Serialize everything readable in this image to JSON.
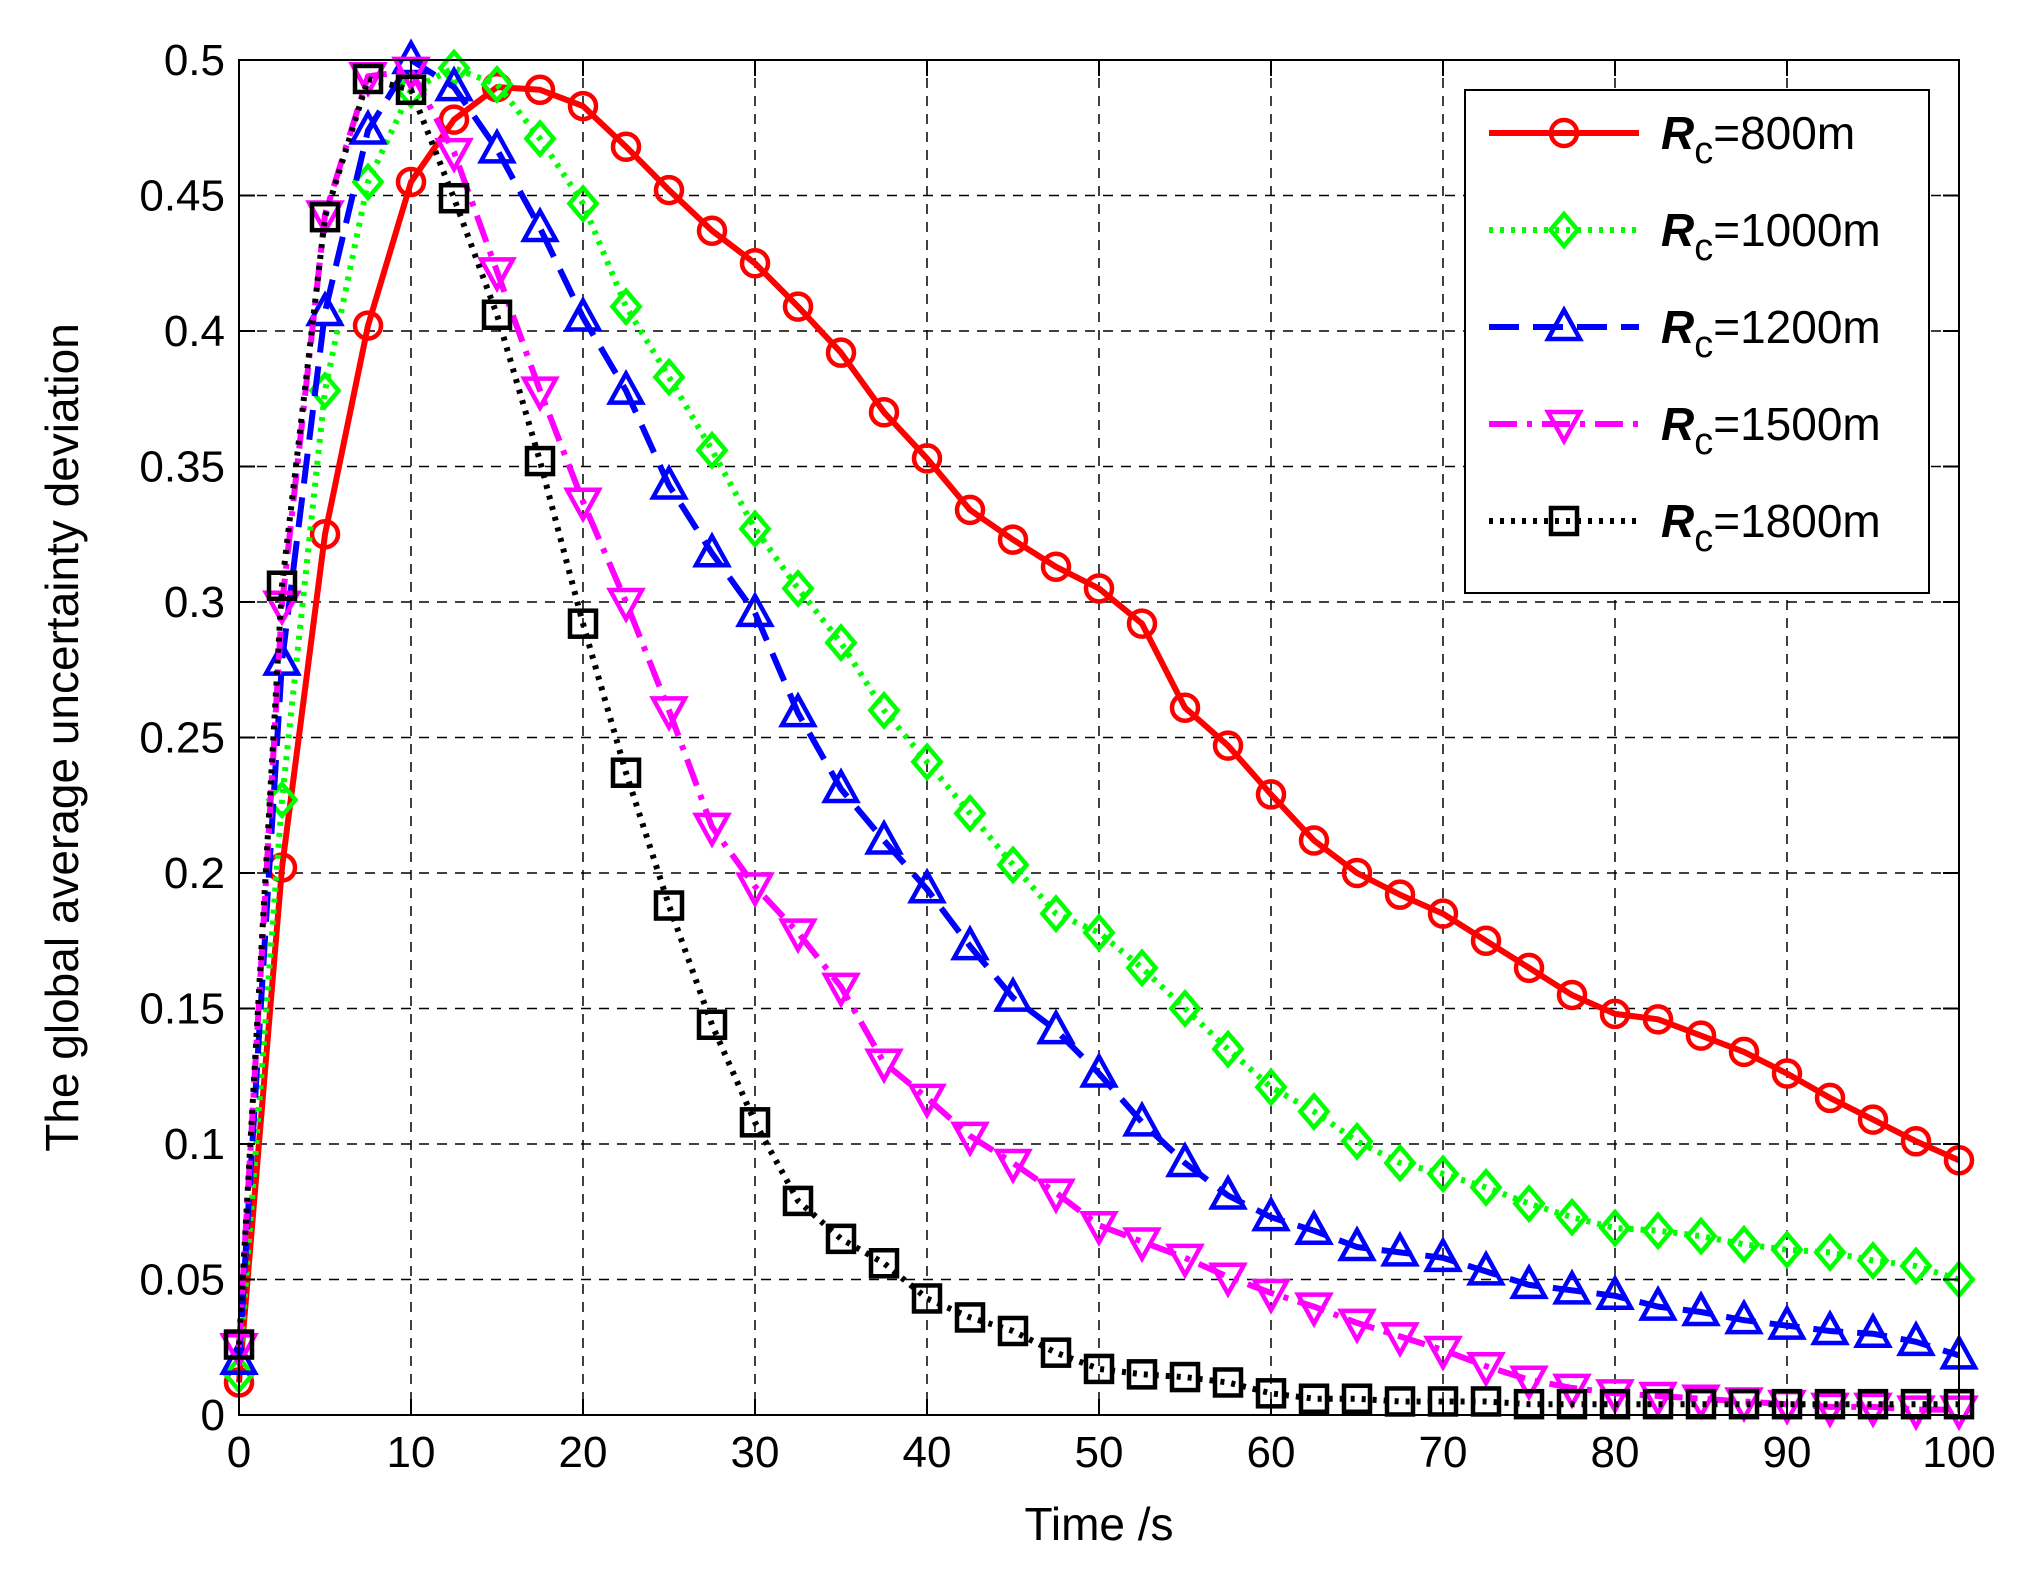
{
  "chart_data": {
    "type": "line",
    "title": "",
    "xlabel": "Time /s",
    "ylabel": "The global average uncertainty deviation",
    "xlim": [
      0,
      100
    ],
    "ylim": [
      0,
      0.5
    ],
    "xticks": [
      0,
      10,
      20,
      30,
      40,
      50,
      60,
      70,
      80,
      90,
      100
    ],
    "xtick_labels": [
      "0",
      "10",
      "20",
      "30",
      "40",
      "50",
      "60",
      "70",
      "80",
      "90",
      "100"
    ],
    "yticks": [
      0,
      0.05,
      0.1,
      0.15,
      0.2,
      0.25,
      0.3,
      0.35,
      0.4,
      0.45,
      0.5
    ],
    "ytick_labels": [
      "0",
      "0.05",
      "0.1",
      "0.15",
      "0.2",
      "0.25",
      "0.3",
      "0.35",
      "0.4",
      "0.45",
      "0.5"
    ],
    "grid": true,
    "legend_position": "top-right",
    "x": [
      0,
      2.5,
      5,
      7.5,
      10,
      12.5,
      15,
      17.5,
      20,
      22.5,
      25,
      27.5,
      30,
      32.5,
      35,
      37.5,
      40,
      42.5,
      45,
      47.5,
      50,
      52.5,
      55,
      57.5,
      60,
      62.5,
      65,
      67.5,
      70,
      72.5,
      75,
      77.5,
      80,
      82.5,
      85,
      87.5,
      90,
      92.5,
      95,
      97.5,
      100
    ],
    "series": [
      {
        "name": "Rc=800m",
        "legend_symbol": "R",
        "legend_subscript": "c",
        "legend_suffix": "=800m",
        "color": "#ff0000",
        "dash": "solid",
        "marker": "circle",
        "values": [
          0.012,
          0.202,
          0.325,
          0.402,
          0.455,
          0.478,
          0.49,
          0.489,
          0.483,
          0.468,
          0.452,
          0.437,
          0.425,
          0.409,
          0.392,
          0.37,
          0.353,
          0.334,
          0.323,
          0.313,
          0.305,
          0.292,
          0.261,
          0.247,
          0.229,
          0.212,
          0.2,
          0.192,
          0.185,
          0.175,
          0.165,
          0.155,
          0.148,
          0.146,
          0.14,
          0.134,
          0.126,
          0.117,
          0.109,
          0.101,
          0.094
        ]
      },
      {
        "name": "Rc=1000m",
        "legend_symbol": "R",
        "legend_subscript": "c",
        "legend_suffix": "=1000m",
        "color": "#00ff00",
        "dash": "dotted",
        "marker": "diamond",
        "values": [
          0.015,
          0.227,
          0.378,
          0.455,
          0.489,
          0.497,
          0.491,
          0.471,
          0.447,
          0.409,
          0.383,
          0.356,
          0.327,
          0.305,
          0.285,
          0.26,
          0.241,
          0.222,
          0.203,
          0.185,
          0.178,
          0.165,
          0.15,
          0.135,
          0.121,
          0.112,
          0.101,
          0.093,
          0.089,
          0.084,
          0.078,
          0.073,
          0.069,
          0.068,
          0.066,
          0.063,
          0.061,
          0.06,
          0.057,
          0.055,
          0.05
        ]
      },
      {
        "name": "Rc=1200m",
        "legend_symbol": "R",
        "legend_subscript": "c",
        "legend_suffix": "=1200m",
        "color": "#0000ff",
        "dash": "dashed",
        "marker": "triangle-up",
        "values": [
          0.02,
          0.278,
          0.407,
          0.474,
          0.5,
          0.49,
          0.467,
          0.438,
          0.405,
          0.378,
          0.343,
          0.318,
          0.296,
          0.259,
          0.231,
          0.212,
          0.194,
          0.173,
          0.154,
          0.142,
          0.126,
          0.108,
          0.093,
          0.081,
          0.073,
          0.068,
          0.062,
          0.06,
          0.058,
          0.053,
          0.048,
          0.046,
          0.044,
          0.04,
          0.038,
          0.035,
          0.033,
          0.031,
          0.03,
          0.027,
          0.022
        ]
      },
      {
        "name": "Rc=1500m",
        "legend_symbol": "R",
        "legend_subscript": "c",
        "legend_suffix": "=1500m",
        "color": "#ff00ff",
        "dash": "dashdot",
        "marker": "triangle-down",
        "values": [
          0.025,
          0.299,
          0.443,
          0.494,
          0.496,
          0.466,
          0.422,
          0.378,
          0.337,
          0.3,
          0.26,
          0.217,
          0.195,
          0.178,
          0.158,
          0.13,
          0.117,
          0.103,
          0.093,
          0.082,
          0.07,
          0.064,
          0.058,
          0.051,
          0.045,
          0.04,
          0.034,
          0.029,
          0.024,
          0.018,
          0.013,
          0.01,
          0.008,
          0.007,
          0.006,
          0.005,
          0.004,
          0.003,
          0.003,
          0.002,
          0.002
        ]
      },
      {
        "name": "Rc=1800m",
        "legend_symbol": "R",
        "legend_subscript": "c",
        "legend_suffix": "=1800m",
        "color": "#000000",
        "dash": "dotted",
        "marker": "square",
        "values": [
          0.026,
          0.306,
          0.442,
          0.493,
          0.489,
          0.449,
          0.406,
          0.352,
          0.292,
          0.237,
          0.188,
          0.144,
          0.108,
          0.079,
          0.065,
          0.056,
          0.043,
          0.036,
          0.031,
          0.023,
          0.017,
          0.015,
          0.014,
          0.012,
          0.008,
          0.006,
          0.006,
          0.005,
          0.005,
          0.005,
          0.004,
          0.004,
          0.004,
          0.004,
          0.004,
          0.004,
          0.004,
          0.004,
          0.004,
          0.004,
          0.004
        ]
      }
    ]
  }
}
